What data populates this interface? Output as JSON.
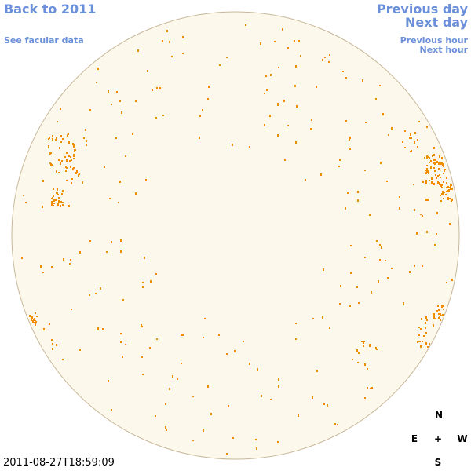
{
  "links": {
    "back": "Back to 2011",
    "facular": "See facular data",
    "previous_day": "Previous day",
    "next_day": "Next day",
    "previous_hour": "Previous hour",
    "next_hour": "Next hour"
  },
  "timestamp": "2011-08-27T18:59:09",
  "compass": {
    "north": "N",
    "east": "E",
    "center": "+",
    "west": "W",
    "south": "S"
  }
}
